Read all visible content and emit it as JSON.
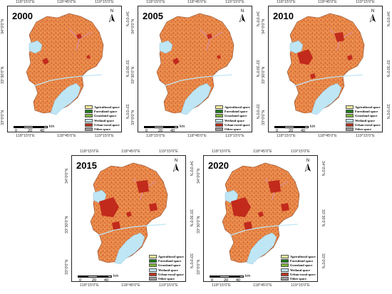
{
  "panels": [
    {
      "year": "2000",
      "urban_level": 1
    },
    {
      "year": "2005",
      "urban_level": 1
    },
    {
      "year": "2010",
      "urban_level": 2
    },
    {
      "year": "2015",
      "urban_level": 3
    },
    {
      "year": "2020",
      "urban_level": 3
    }
  ],
  "coords": {
    "lon_left": "118°15'0\"E",
    "lon_mid": "118°45'0\"E",
    "lon_right": "119°15'0\"E",
    "lat_top": "34°0'0\"N",
    "lat_mid": "33°30'0\"N",
    "lat_bottom": "33°0'0\"N"
  },
  "north": {
    "label": "N"
  },
  "scale": {
    "ticks": [
      "0",
      "20",
      "40"
    ],
    "unit": "km"
  },
  "legend": [
    {
      "label": "Agricultural  space",
      "color": "#f4ee9b"
    },
    {
      "label": "Forestland  space",
      "color": "#1f7a1f"
    },
    {
      "label": "Grassland space",
      "color": "#7fb53b"
    },
    {
      "label": "Wetland space",
      "color": "#bfe6f5"
    },
    {
      "label": "Urban-rural  space",
      "color": "#b8321d"
    },
    {
      "label": "Other space",
      "color": "#9a9a9a"
    }
  ],
  "palette": {
    "land": "#e98a4a",
    "land_dark": "#c9532b",
    "urban": "#c22a1c",
    "water": "#bfe6f5",
    "boundary": "#d98cb3"
  }
}
